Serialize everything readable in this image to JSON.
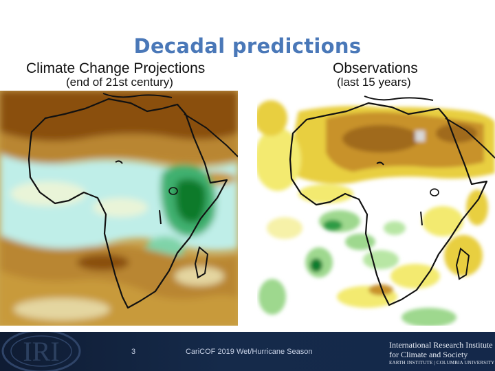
{
  "slide": {
    "title": "Decadal predictions",
    "left_panel": {
      "heading": "Climate Change Projections",
      "subheading": "(end of 21st century)"
    },
    "right_panel": {
      "heading": "Observations",
      "subheading": "(last 15 years)"
    }
  },
  "footer": {
    "logo_text": "IRI",
    "page_number": "3",
    "event": "CariCOF 2019 Wet/Hurricane Season",
    "org_line1": "International Research Institute",
    "org_line2": "for Climate and Society",
    "org_line3": "EARTH INSTITUTE | COLUMBIA UNIVERSITY"
  },
  "colors": {
    "title": "#4a78b8",
    "dry_strong": "#8a5010",
    "dry": "#c89a3a",
    "dry_light": "#e4d6a0",
    "wet_light": "#bfeee8",
    "wet": "#40b070",
    "wet_strong": "#0c7a2c"
  }
}
